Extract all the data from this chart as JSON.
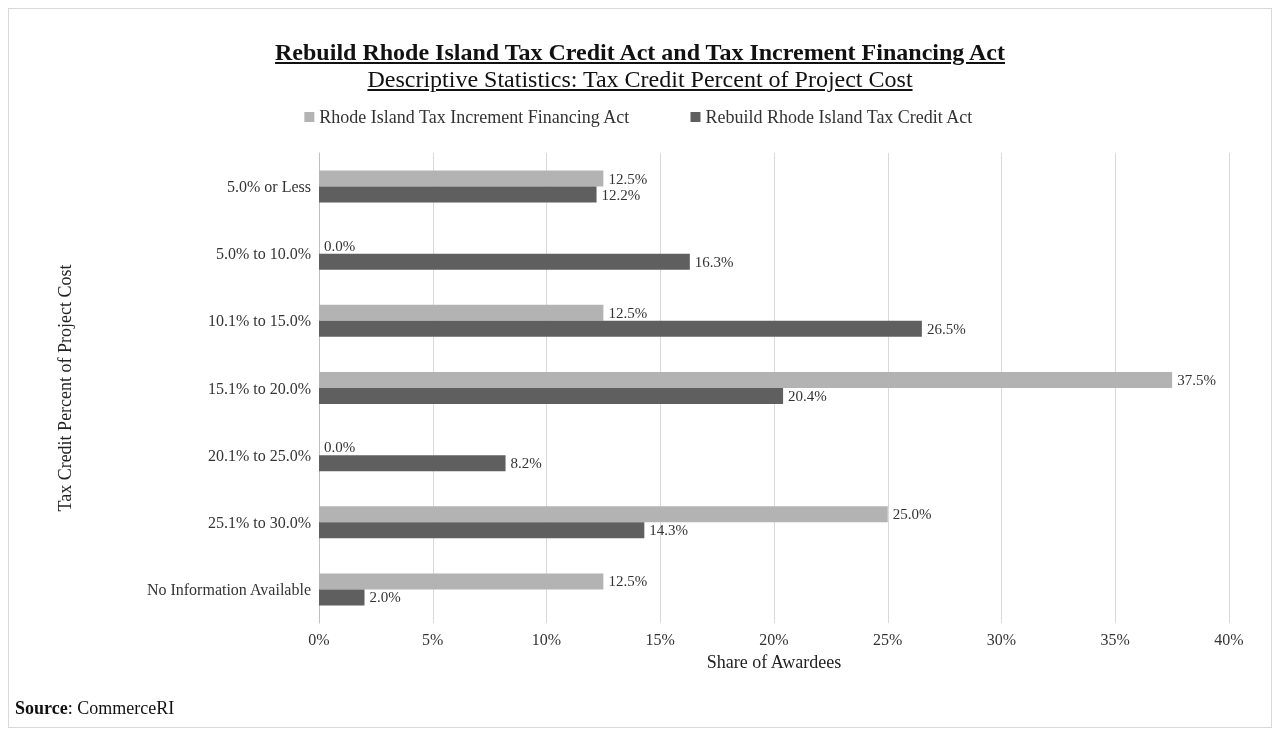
{
  "chart_data": {
    "type": "bar",
    "orientation": "horizontal",
    "title": "Rebuild Rhode Island Tax Credit Act and Tax Increment Financing Act",
    "subtitle": "Descriptive Statistics: Tax Credit Percent of Project Cost",
    "xlabel": "Share of Awardees",
    "ylabel": "Tax Credit Percent of Project Cost",
    "categories": [
      "5.0% or Less",
      "5.0% to 10.0%",
      "10.1% to 15.0%",
      "15.1% to 20.0%",
      "20.1% to 25.0%",
      "25.1% to 30.0%",
      "No Information Available"
    ],
    "series": [
      {
        "name": "Rhode Island Tax Increment Financing Act",
        "color": "#b3b3b3",
        "values": [
          12.5,
          0,
          12.5,
          37.5,
          0,
          25,
          12.5
        ],
        "value_labels": [
          "12.5%",
          "0.0%",
          "12.5%",
          "37.5%",
          "0.0%",
          "25.0%",
          "12.5%"
        ]
      },
      {
        "name": "Rebuild Rhode Island Tax Credit Act",
        "color": "#5f5f5f",
        "values": [
          12.2,
          16.3,
          26.5,
          20.4,
          8.2,
          14.3,
          2.0
        ],
        "value_labels": [
          "12.2%",
          "16.3%",
          "26.5%",
          "20.4%",
          "8.2%",
          "14.3%",
          "2.0%"
        ]
      }
    ],
    "xlim": [
      0,
      40
    ],
    "xticks": [
      {
        "value": 0,
        "label": "0%"
      },
      {
        "value": 5,
        "label": "5%"
      },
      {
        "value": 10,
        "label": "10%"
      },
      {
        "value": 15,
        "label": "15%"
      },
      {
        "value": 20,
        "label": "20%"
      },
      {
        "value": 25,
        "label": "25%"
      },
      {
        "value": 30,
        "label": "30%"
      },
      {
        "value": 35,
        "label": "35%"
      },
      {
        "value": 40,
        "label": "40%"
      }
    ],
    "grid": "x",
    "legend": "top",
    "annotations": [
      "Source: CommerceRI"
    ]
  }
}
